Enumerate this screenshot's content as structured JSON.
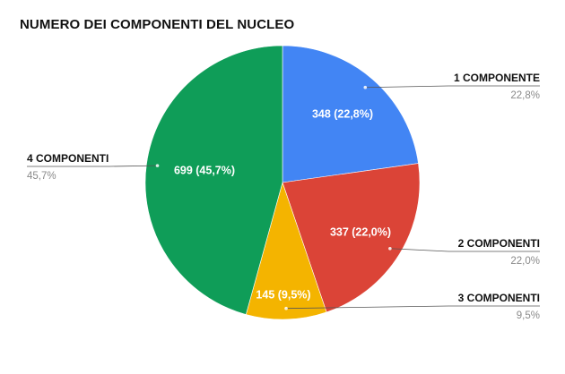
{
  "chart_data": {
    "type": "pie",
    "title": "NUMERO DEI COMPONENTI DEL NUCLEO",
    "slices": [
      {
        "name": "1 COMPONENTE",
        "value": 348,
        "percent_label": "22,8%",
        "data_label": "348 (22,8%)",
        "color": "#4285F4"
      },
      {
        "name": "2 COMPONENTI",
        "value": 337,
        "percent_label": "22,0%",
        "data_label": "337 (22,0%)",
        "color": "#DB4437"
      },
      {
        "name": "3 COMPONENTI",
        "value": 145,
        "percent_label": "9,5%",
        "data_label": "145 (9,5%)",
        "color": "#F4B400"
      },
      {
        "name": "4 COMPONENTI",
        "value": 699,
        "percent_label": "45,7%",
        "data_label": "699 (45,7%)",
        "color": "#0F9D58"
      }
    ]
  }
}
